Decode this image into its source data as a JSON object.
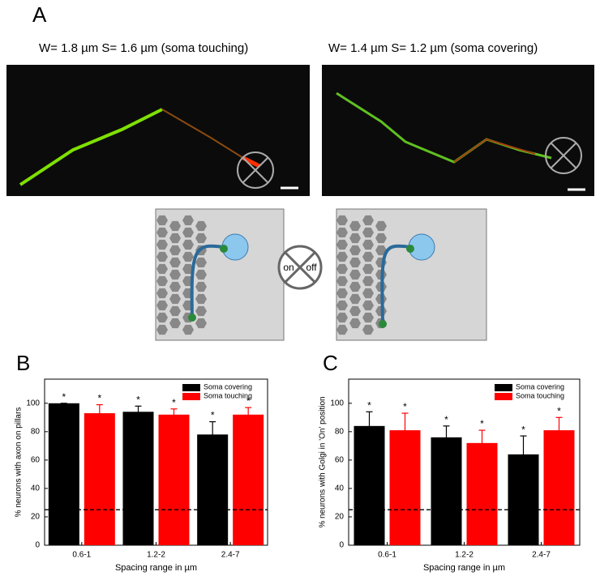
{
  "panel_a": {
    "label": "A",
    "images": [
      {
        "title": "W= 1.8 µm S= 1.6 µm (soma touching)"
      },
      {
        "title": "W= 1.4 µm S= 1.2 µm (soma covering)"
      }
    ],
    "switch": {
      "on": "on",
      "off": "off"
    }
  },
  "chart_data": [
    {
      "type": "bar",
      "panel_label": "B",
      "x_label": "Spacing range in µm",
      "y_label": "% neurons with axon on pillars",
      "categories": [
        "0.6-1",
        "1.2-2",
        "2.4-7"
      ],
      "series": [
        {
          "name": "Soma covering",
          "color": "#000000",
          "values": [
            100,
            94,
            78
          ],
          "errors": [
            0,
            4,
            9
          ],
          "significance": [
            "*",
            "*",
            "*"
          ]
        },
        {
          "name": "Soma touching",
          "color": "#ff0000",
          "values": [
            93,
            92,
            92
          ],
          "errors": [
            6,
            4,
            5
          ],
          "significance": [
            "*",
            "*",
            "*"
          ]
        }
      ],
      "reference_line": 25,
      "ylim": [
        0,
        117
      ],
      "yticks": [
        0,
        20,
        40,
        60,
        80,
        100
      ],
      "legend": "upper right"
    },
    {
      "type": "bar",
      "panel_label": "C",
      "x_label": "Spacing range in µm",
      "y_label": "% neurons with Golgi in 'On' position",
      "categories": [
        "0.6-1",
        "1.2-2",
        "2.4-7"
      ],
      "series": [
        {
          "name": "Soma covering",
          "color": "#000000",
          "values": [
            84,
            76,
            64
          ],
          "errors": [
            10,
            8,
            13
          ],
          "significance": [
            "*",
            "*",
            "*"
          ]
        },
        {
          "name": "Soma touching",
          "color": "#ff0000",
          "values": [
            81,
            72,
            81
          ],
          "errors": [
            12,
            9,
            9
          ],
          "significance": [
            "*",
            "*",
            "*"
          ]
        }
      ],
      "reference_line": 25,
      "ylim": [
        0,
        117
      ],
      "yticks": [
        0,
        20,
        40,
        60,
        80,
        100
      ],
      "legend": "upper right"
    }
  ]
}
